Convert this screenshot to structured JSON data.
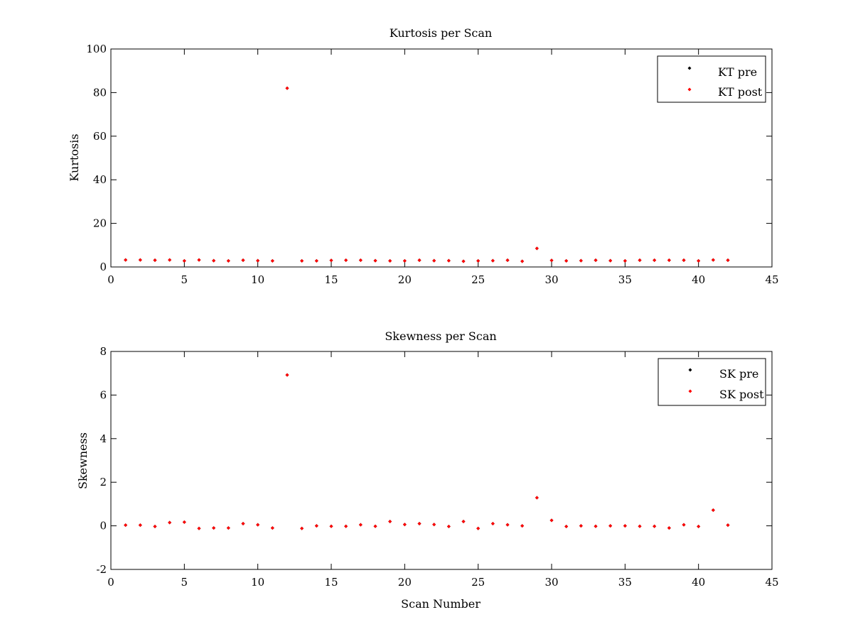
{
  "chart_data": [
    {
      "type": "scatter",
      "title": "Kurtosis per Scan",
      "xlabel": "",
      "ylabel": "Kurtosis",
      "xlim": [
        0,
        45
      ],
      "ylim": [
        0,
        100
      ],
      "xticks": [
        0,
        5,
        10,
        15,
        20,
        25,
        30,
        35,
        40,
        45
      ],
      "yticks": [
        0,
        20,
        40,
        60,
        80,
        100
      ],
      "grid": false,
      "legend_position": "top-right",
      "series": [
        {
          "name": "KT pre",
          "color": "#000000",
          "x": [
            1,
            2,
            3,
            4,
            5,
            6,
            7,
            8,
            9,
            10,
            11,
            12,
            13,
            14,
            15,
            16,
            17,
            18,
            19,
            20,
            21,
            22,
            23,
            24,
            25,
            26,
            27,
            28,
            29,
            30,
            31,
            32,
            33,
            34,
            35,
            36,
            37,
            38,
            39,
            40,
            41,
            42
          ],
          "y": [
            3.2,
            3.2,
            3.1,
            3.2,
            2.8,
            3.2,
            2.9,
            2.8,
            3.1,
            2.9,
            2.8,
            82.0,
            2.8,
            2.8,
            3.0,
            3.1,
            3.1,
            2.9,
            2.8,
            2.8,
            3.1,
            2.9,
            2.9,
            2.6,
            2.8,
            2.9,
            3.1,
            2.6,
            8.5,
            3.0,
            2.8,
            2.9,
            3.1,
            2.9,
            2.8,
            3.1,
            3.1,
            3.1,
            3.1,
            2.8,
            3.2,
            3.1
          ]
        },
        {
          "name": "KT post",
          "color": "#ff0000",
          "x": [
            1,
            2,
            3,
            4,
            5,
            6,
            7,
            8,
            9,
            10,
            11,
            12,
            13,
            14,
            15,
            16,
            17,
            18,
            19,
            20,
            21,
            22,
            23,
            24,
            25,
            26,
            27,
            28,
            29,
            30,
            31,
            32,
            33,
            34,
            35,
            36,
            37,
            38,
            39,
            40,
            41,
            42
          ],
          "y": [
            3.2,
            3.2,
            3.1,
            3.2,
            2.8,
            3.2,
            2.9,
            2.8,
            3.1,
            2.9,
            2.8,
            82.0,
            2.8,
            2.8,
            3.0,
            3.1,
            3.1,
            2.9,
            2.8,
            2.8,
            3.1,
            2.9,
            2.9,
            2.6,
            2.8,
            2.9,
            3.1,
            2.6,
            8.5,
            3.0,
            2.8,
            2.9,
            3.1,
            2.9,
            2.8,
            3.1,
            3.1,
            3.1,
            3.1,
            2.8,
            3.2,
            3.1
          ]
        }
      ]
    },
    {
      "type": "scatter",
      "title": "Skewness per Scan",
      "xlabel": "Scan Number",
      "ylabel": "Skewness",
      "xlim": [
        0,
        45
      ],
      "ylim": [
        -2,
        8
      ],
      "xticks": [
        0,
        5,
        10,
        15,
        20,
        25,
        30,
        35,
        40,
        45
      ],
      "yticks": [
        -2,
        0,
        2,
        4,
        6,
        8
      ],
      "grid": false,
      "legend_position": "top-right",
      "series": [
        {
          "name": "SK pre",
          "color": "#000000",
          "x": [
            1,
            2,
            3,
            4,
            5,
            6,
            7,
            8,
            9,
            10,
            11,
            12,
            13,
            14,
            15,
            16,
            17,
            18,
            19,
            20,
            21,
            22,
            23,
            24,
            25,
            26,
            27,
            28,
            29,
            30,
            31,
            32,
            33,
            34,
            35,
            36,
            37,
            38,
            39,
            40,
            41,
            42
          ],
          "y": [
            0.03,
            0.03,
            -0.03,
            0.15,
            0.17,
            -0.12,
            -0.1,
            -0.1,
            0.1,
            0.05,
            -0.1,
            6.92,
            -0.12,
            0.0,
            -0.02,
            -0.02,
            0.05,
            -0.02,
            0.2,
            0.06,
            0.1,
            0.06,
            -0.03,
            0.2,
            -0.12,
            0.1,
            0.05,
            0.0,
            1.29,
            0.25,
            -0.03,
            0.0,
            -0.02,
            0.0,
            0.0,
            -0.02,
            -0.02,
            -0.1,
            0.05,
            -0.03,
            0.72,
            0.03
          ]
        },
        {
          "name": "SK post",
          "color": "#ff0000",
          "x": [
            1,
            2,
            3,
            4,
            5,
            6,
            7,
            8,
            9,
            10,
            11,
            12,
            13,
            14,
            15,
            16,
            17,
            18,
            19,
            20,
            21,
            22,
            23,
            24,
            25,
            26,
            27,
            28,
            29,
            30,
            31,
            32,
            33,
            34,
            35,
            36,
            37,
            38,
            39,
            40,
            41,
            42
          ],
          "y": [
            0.03,
            0.03,
            -0.03,
            0.15,
            0.17,
            -0.12,
            -0.1,
            -0.1,
            0.1,
            0.05,
            -0.1,
            6.92,
            -0.12,
            0.0,
            -0.02,
            -0.02,
            0.05,
            -0.02,
            0.2,
            0.06,
            0.1,
            0.06,
            -0.03,
            0.2,
            -0.12,
            0.1,
            0.05,
            0.0,
            1.29,
            0.25,
            -0.03,
            0.0,
            -0.02,
            0.0,
            0.0,
            -0.02,
            -0.02,
            -0.1,
            0.05,
            -0.03,
            0.72,
            0.03
          ]
        }
      ]
    }
  ]
}
